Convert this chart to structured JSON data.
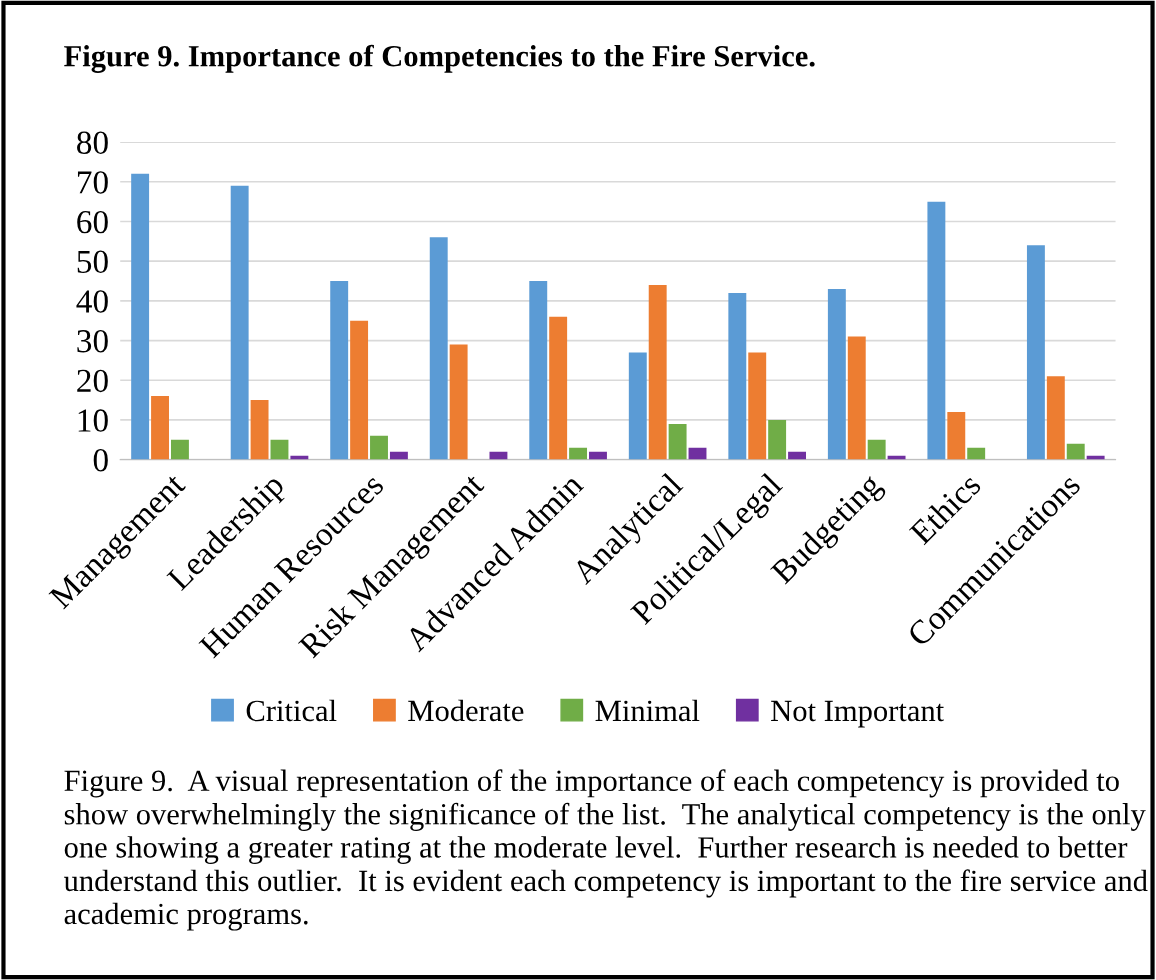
{
  "chart_data": {
    "type": "bar",
    "title": "Figure 9. Importance of Competencies to the Fire Service.",
    "categories": [
      "Management",
      "Leadership",
      "Human Resources",
      "Risk Management",
      "Advanced Admin",
      "Analytical",
      "Political/Legal",
      "Budgeting",
      "Ethics",
      "Communications"
    ],
    "series": [
      {
        "name": "Critical",
        "color": "#5b9bd5",
        "values": [
          72,
          69,
          45,
          56,
          45,
          27,
          42,
          43,
          65,
          54
        ]
      },
      {
        "name": "Moderate",
        "color": "#ed7d31",
        "values": [
          16,
          15,
          35,
          29,
          36,
          44,
          27,
          31,
          12,
          21
        ]
      },
      {
        "name": "Minimal",
        "color": "#70ad47",
        "values": [
          5,
          5,
          6,
          0,
          3,
          9,
          10,
          5,
          3,
          4
        ]
      },
      {
        "name": "Not Important",
        "color": "#7030a0",
        "values": [
          0,
          1,
          2,
          2,
          2,
          3,
          2,
          1,
          0,
          1
        ]
      }
    ],
    "ylim": [
      0,
      80
    ],
    "yticks": [
      0,
      10,
      20,
      30,
      40,
      50,
      60,
      70,
      80
    ],
    "grid": "y",
    "legend": "bottom",
    "annotations": [
      "Figure 9.  A visual representation of the importance of each competency is provided to show overwhelmingly the significance of the list.  The analytical competency is the only one showing a greater rating at the moderate level.  Further research is needed to better understand this outlier.  It is evident each competency is important to the fire service and academic programs."
    ]
  }
}
